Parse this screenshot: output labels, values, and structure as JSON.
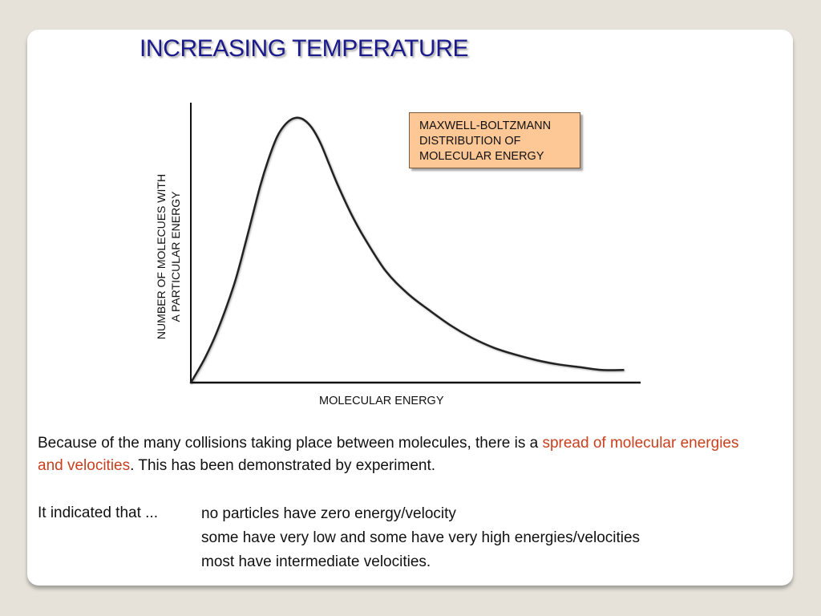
{
  "slide": {
    "title": "INCREASING TEMPERATURE",
    "legend": {
      "line1": "MAXWELL-BOLTZMANN",
      "line2": "DISTRIBUTION OF",
      "line3": "MOLECULAR ENERGY",
      "bg_color": "#fdc796"
    },
    "paragraph": {
      "part1": "Because of the many collisions taking place between molecules, there is a ",
      "highlight": "spread of molecular energies and velocities",
      "part2": ".  This has been demonstrated by experiment.",
      "highlight_color": "#c8401e"
    },
    "indication": {
      "label": "It indicated that ...",
      "items": [
        "no particles have zero energy/velocity",
        "some have very low and some have very high energies/velocities",
        "most have intermediate velocities."
      ]
    }
  },
  "chart_data": {
    "type": "line",
    "xlabel": "MOLECULAR ENERGY",
    "ylabel_line1": "NUMBER OF MOLECUES WITH",
    "ylabel_line2": "A PARTICULAR ENERGY",
    "series": [
      {
        "x": [
          0,
          3,
          6,
          10,
          13,
          16,
          18,
          20,
          22,
          24,
          26,
          28,
          30,
          32,
          34,
          37,
          40,
          45,
          50,
          55,
          60,
          65,
          70,
          75,
          80,
          85,
          90,
          95,
          100
        ],
        "values": [
          0,
          8,
          18,
          35,
          52,
          70,
          80,
          88,
          92.5,
          94.5,
          94,
          91,
          85.5,
          78,
          70.5,
          60.5,
          52,
          40,
          32,
          26,
          20.5,
          16,
          12.5,
          10,
          8,
          6.5,
          5.5,
          4.5,
          4.5
        ]
      }
    ],
    "xlim": [
      0,
      104
    ],
    "ylim": [
      0,
      100
    ],
    "grid": false
  }
}
